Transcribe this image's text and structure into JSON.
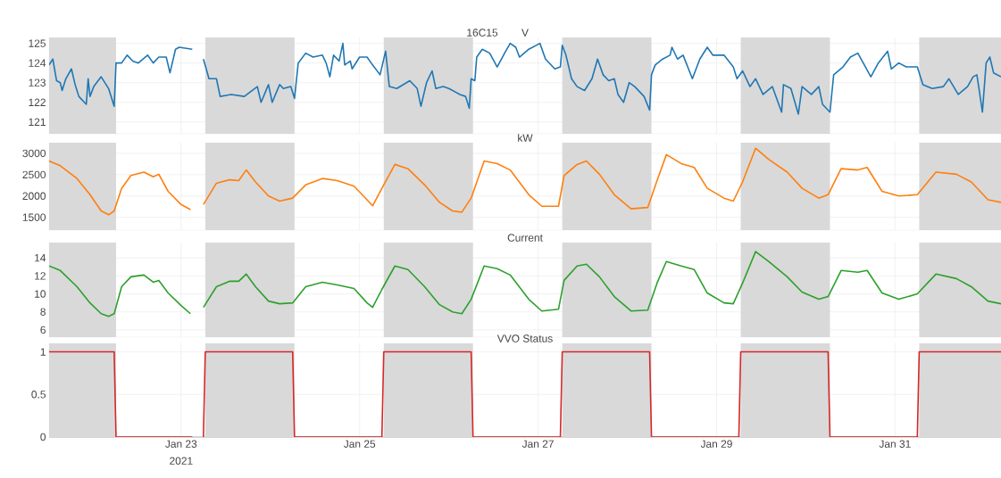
{
  "chart_data": [
    {
      "type": "line",
      "title": "V",
      "annotations": [
        "16C15"
      ],
      "xlim": [
        "2021-01-21T12:30",
        "2021-02-01T04:30"
      ],
      "ylim": [
        120.4,
        125.3
      ],
      "yticks": [
        121,
        122,
        123,
        124,
        125
      ],
      "xticks": [
        {
          "value": "2021-01-23",
          "label": null
        },
        {
          "value": "2021-01-25",
          "label": null
        },
        {
          "value": "2021-01-27",
          "label": null
        },
        {
          "value": "2021-01-29",
          "label": null
        },
        {
          "value": "2021-01-31",
          "label": null
        }
      ],
      "tick_labels": "y",
      "grid": true,
      "marker": "none",
      "line_style": "solid",
      "bands": [
        {
          "axis": "x",
          "from": "2021-01-21T12:30",
          "to": "2021-01-22T06:30",
          "color": "#d9d9d9"
        },
        {
          "axis": "x",
          "from": "2021-01-23T06:30",
          "to": "2021-01-24T06:30",
          "color": "#d9d9d9"
        },
        {
          "axis": "x",
          "from": "2021-01-25T06:30",
          "to": "2021-01-26T06:30",
          "color": "#d9d9d9"
        },
        {
          "axis": "x",
          "from": "2021-01-27T06:30",
          "to": "2021-01-28T06:30",
          "color": "#d9d9d9"
        },
        {
          "axis": "x",
          "from": "2021-01-29T06:30",
          "to": "2021-01-30T06:30",
          "color": "#d9d9d9"
        },
        {
          "axis": "x",
          "from": "2021-01-31T06:30",
          "to": "2021-02-01T04:30",
          "color": "#d9d9d9"
        }
      ],
      "series": [
        {
          "color": "#1f77b4",
          "x": [
            "2021-01-21T12:30",
            "2021-01-21T13:30",
            "2021-01-21T14:30",
            "2021-01-21T15:30",
            "2021-01-21T16:00",
            "2021-01-21T17:00",
            "2021-01-21T18:30",
            "2021-01-21T19:30",
            "2021-01-21T20:30",
            "2021-01-21T22:30",
            "2021-01-21T23:00",
            "2021-01-21T23:30",
            "2021-01-22T00:30",
            "2021-01-22T02:30",
            "2021-01-22T04:30",
            "2021-01-22T06:00",
            "2021-01-22T06:30",
            "2021-01-22T08:00",
            "2021-01-22T09:30",
            "2021-01-22T11:00",
            "2021-01-22T12:30",
            "2021-01-22T15:00",
            "2021-01-22T16:30",
            "2021-01-22T18:00",
            "2021-01-22T20:00",
            "2021-01-22T21:00",
            "2021-01-22T22:30",
            "2021-01-22T23:30",
            "2021-01-23T03:00",
            "2021-01-23T04:30",
            "2021-01-23T06:00",
            "2021-01-23T07:30",
            "2021-01-23T09:30",
            "2021-01-23T10:30",
            "2021-01-23T13:30",
            "2021-01-23T17:00",
            "2021-01-23T20:30",
            "2021-01-23T21:30",
            "2021-01-23T23:30",
            "2021-01-24T00:30",
            "2021-01-24T02:30",
            "2021-01-24T03:30",
            "2021-01-24T05:30",
            "2021-01-24T06:30",
            "2021-01-24T07:30",
            "2021-01-24T09:30",
            "2021-01-24T11:30",
            "2021-01-24T14:00",
            "2021-01-24T15:00",
            "2021-01-24T16:00",
            "2021-01-24T17:00",
            "2021-01-24T18:30",
            "2021-01-24T19:30",
            "2021-01-24T20:00",
            "2021-01-24T21:30",
            "2021-01-24T22:00",
            "2021-01-25T00:00",
            "2021-01-25T02:00",
            "2021-01-25T03:30",
            "2021-01-25T05:30",
            "2021-01-25T07:00",
            "2021-01-25T08:00",
            "2021-01-25T10:00",
            "2021-01-25T13:30",
            "2021-01-25T15:30",
            "2021-01-25T16:30",
            "2021-01-25T18:00",
            "2021-01-25T19:30",
            "2021-01-25T20:30",
            "2021-01-25T22:30",
            "2021-01-26T00:00",
            "2021-01-26T03:00",
            "2021-01-26T04:30",
            "2021-01-26T05:30",
            "2021-01-26T06:00",
            "2021-01-26T07:00",
            "2021-01-26T07:30",
            "2021-01-26T09:00",
            "2021-01-26T11:00",
            "2021-01-26T13:00",
            "2021-01-26T15:00",
            "2021-01-26T16:30",
            "2021-01-26T18:00",
            "2021-01-26T19:00",
            "2021-01-26T21:30",
            "2021-01-27T00:30",
            "2021-01-27T02:00",
            "2021-01-27T04:30",
            "2021-01-27T06:00",
            "2021-01-27T06:30",
            "2021-01-27T07:30",
            "2021-01-27T09:00",
            "2021-01-27T10:30",
            "2021-01-27T12:30",
            "2021-01-27T14:30",
            "2021-01-27T16:00",
            "2021-01-27T17:30",
            "2021-01-27T19:00",
            "2021-01-27T20:30",
            "2021-01-27T21:30",
            "2021-01-27T23:00",
            "2021-01-28T00:30",
            "2021-01-28T02:00",
            "2021-01-28T04:30",
            "2021-01-28T06:00",
            "2021-01-28T06:30",
            "2021-01-28T07:30",
            "2021-01-28T09:30",
            "2021-01-28T11:30",
            "2021-01-28T12:00",
            "2021-01-28T13:30",
            "2021-01-28T15:00",
            "2021-01-28T17:30",
            "2021-01-28T19:30",
            "2021-01-28T21:30",
            "2021-01-28T23:00",
            "2021-01-29T02:00",
            "2021-01-29T04:30",
            "2021-01-29T05:30",
            "2021-01-29T07:00",
            "2021-01-29T09:00",
            "2021-01-29T10:30",
            "2021-01-29T12:30",
            "2021-01-29T15:00",
            "2021-01-29T17:30",
            "2021-01-29T18:00",
            "2021-01-29T20:00",
            "2021-01-29T22:00",
            "2021-01-29T23:00",
            "2021-01-30T01:30",
            "2021-01-30T03:30",
            "2021-01-30T04:30",
            "2021-01-30T06:30",
            "2021-01-30T07:30",
            "2021-01-30T10:00",
            "2021-01-30T12:00",
            "2021-01-30T14:00",
            "2021-01-30T17:30",
            "2021-01-30T19:30",
            "2021-01-30T22:00",
            "2021-01-30T23:00",
            "2021-01-31T01:00",
            "2021-01-31T03:00",
            "2021-01-31T06:00",
            "2021-01-31T07:30",
            "2021-01-31T10:00",
            "2021-01-31T13:00",
            "2021-01-31T14:30",
            "2021-01-31T17:00",
            "2021-01-31T19:30",
            "2021-01-31T21:00",
            "2021-01-31T22:00",
            "2021-01-31T22:30",
            "2021-01-31T23:30",
            "2021-02-01T00:30",
            "2021-02-01T01:30",
            "2021-02-01T02:30",
            "2021-02-01T04:30"
          ],
          "values": [
            123.9,
            124.2,
            123.1,
            123.0,
            122.6,
            123.2,
            123.7,
            122.9,
            122.3,
            121.9,
            123.2,
            122.3,
            122.8,
            123.3,
            122.7,
            121.8,
            124.0,
            124.0,
            124.4,
            124.1,
            124.0,
            124.4,
            124.0,
            124.3,
            124.3,
            123.5,
            124.7,
            124.8,
            124.7,
            null,
            124.2,
            123.2,
            123.2,
            122.3,
            122.4,
            122.3,
            122.8,
            122.0,
            122.9,
            122.0,
            122.9,
            122.7,
            122.8,
            122.2,
            124.0,
            124.5,
            124.3,
            124.4,
            124.0,
            123.3,
            124.4,
            124.1,
            125.0,
            123.9,
            124.1,
            123.7,
            124.3,
            124.3,
            123.9,
            123.4,
            124.6,
            122.8,
            122.7,
            123.1,
            122.7,
            121.8,
            123.0,
            123.6,
            122.7,
            122.8,
            122.7,
            122.4,
            122.3,
            121.7,
            123.2,
            123.1,
            124.3,
            124.7,
            124.5,
            123.8,
            124.5,
            125.0,
            124.8,
            124.3,
            124.7,
            125.0,
            124.2,
            123.7,
            123.8,
            124.9,
            124.4,
            123.2,
            122.8,
            122.6,
            123.2,
            124.2,
            123.4,
            123.1,
            123.2,
            122.4,
            122.0,
            123.0,
            122.8,
            122.3,
            121.6,
            123.4,
            123.9,
            124.2,
            124.4,
            124.8,
            124.2,
            124.4,
            123.2,
            124.2,
            124.8,
            124.4,
            124.4,
            123.8,
            123.2,
            123.6,
            122.8,
            123.2,
            122.4,
            122.8,
            121.5,
            122.9,
            122.7,
            121.4,
            122.8,
            122.4,
            122.8,
            121.9,
            121.5,
            123.4,
            123.8,
            124.3,
            124.5,
            123.3,
            124.0,
            124.6,
            123.7,
            124.0,
            123.8,
            123.8,
            122.9,
            122.7,
            122.8,
            123.2,
            122.4,
            122.8,
            123.3,
            123.4,
            122.8,
            121.5,
            124.0,
            124.3,
            123.5,
            123.3
          ]
        }
      ]
    },
    {
      "type": "line",
      "title": "kW",
      "xlim": [
        "2021-01-21T12:30",
        "2021-02-01T04:30"
      ],
      "ylim": [
        1200,
        3250
      ],
      "yticks": [
        1500,
        2000,
        2500,
        3000
      ],
      "xticks": [
        {
          "value": "2021-01-23",
          "label": null
        },
        {
          "value": "2021-01-25",
          "label": null
        },
        {
          "value": "2021-01-27",
          "label": null
        },
        {
          "value": "2021-01-29",
          "label": null
        },
        {
          "value": "2021-01-31",
          "label": null
        }
      ],
      "tick_labels": "y",
      "grid": true,
      "marker": "none",
      "line_style": "solid",
      "bands": [
        {
          "axis": "x",
          "from": "2021-01-21T12:30",
          "to": "2021-01-22T06:30",
          "color": "#d9d9d9"
        },
        {
          "axis": "x",
          "from": "2021-01-23T06:30",
          "to": "2021-01-24T06:30",
          "color": "#d9d9d9"
        },
        {
          "axis": "x",
          "from": "2021-01-25T06:30",
          "to": "2021-01-26T06:30",
          "color": "#d9d9d9"
        },
        {
          "axis": "x",
          "from": "2021-01-27T06:30",
          "to": "2021-01-28T06:30",
          "color": "#d9d9d9"
        },
        {
          "axis": "x",
          "from": "2021-01-29T06:30",
          "to": "2021-01-30T06:30",
          "color": "#d9d9d9"
        },
        {
          "axis": "x",
          "from": "2021-01-31T06:30",
          "to": "2021-02-01T04:30",
          "color": "#d9d9d9"
        }
      ],
      "series": [
        {
          "color": "#ff7f0e",
          "x": [
            "2021-01-21T12:30",
            "2021-01-21T15:30",
            "2021-01-21T20:00",
            "2021-01-21T23:30",
            "2021-01-22T02:30",
            "2021-01-22T04:30",
            "2021-01-22T06:00",
            "2021-01-22T08:00",
            "2021-01-22T10:30",
            "2021-01-22T14:00",
            "2021-01-22T16:30",
            "2021-01-22T18:00",
            "2021-01-22T20:30",
            "2021-01-23T00:00",
            "2021-01-23T02:30",
            "2021-01-23T04:30",
            "2021-01-23T06:00",
            "2021-01-23T09:30",
            "2021-01-23T13:00",
            "2021-01-23T15:30",
            "2021-01-23T17:30",
            "2021-01-23T20:00",
            "2021-01-23T23:30",
            "2021-01-24T02:30",
            "2021-01-24T06:00",
            "2021-01-24T09:30",
            "2021-01-24T14:00",
            "2021-01-24T18:00",
            "2021-01-24T22:30",
            "2021-01-25T02:00",
            "2021-01-25T03:30",
            "2021-01-25T06:00",
            "2021-01-25T09:30",
            "2021-01-25T13:00",
            "2021-01-25T17:30",
            "2021-01-25T21:30",
            "2021-01-26T01:00",
            "2021-01-26T03:30",
            "2021-01-26T06:00",
            "2021-01-26T09:30",
            "2021-01-26T13:00",
            "2021-01-26T16:30",
            "2021-01-26T21:30",
            "2021-01-27T01:00",
            "2021-01-27T05:30",
            "2021-01-27T07:00",
            "2021-01-27T10:30",
            "2021-01-27T13:00",
            "2021-01-27T16:30",
            "2021-01-27T20:30",
            "2021-01-28T01:00",
            "2021-01-28T05:30",
            "2021-01-28T08:00",
            "2021-01-28T10:30",
            "2021-01-28T14:30",
            "2021-01-28T18:00",
            "2021-01-28T21:30",
            "2021-01-29T02:00",
            "2021-01-29T04:30",
            "2021-01-29T07:00",
            "2021-01-29T10:30",
            "2021-01-29T14:00",
            "2021-01-29T19:00",
            "2021-01-29T23:00",
            "2021-01-30T03:30",
            "2021-01-30T06:00",
            "2021-01-30T09:30",
            "2021-01-30T14:00",
            "2021-01-30T16:30",
            "2021-01-30T20:30",
            "2021-01-31T01:00",
            "2021-01-31T06:00",
            "2021-01-31T11:00",
            "2021-01-31T16:30",
            "2021-01-31T20:30",
            "2021-02-01T01:00",
            "2021-02-01T04:30"
          ],
          "values": [
            2820,
            2710,
            2410,
            2030,
            1650,
            1560,
            1650,
            2180,
            2480,
            2560,
            2450,
            2510,
            2110,
            1800,
            1680,
            null,
            1800,
            2300,
            2380,
            2360,
            2610,
            2330,
            2000,
            1880,
            1950,
            2260,
            2410,
            2360,
            2230,
            1910,
            1770,
            2180,
            2740,
            2640,
            2260,
            1850,
            1650,
            1620,
            1950,
            2820,
            2760,
            2610,
            2030,
            1760,
            1760,
            2480,
            2740,
            2820,
            2510,
            2030,
            1700,
            1730,
            2360,
            2970,
            2760,
            2670,
            2180,
            1950,
            1880,
            2330,
            3120,
            2860,
            2560,
            2180,
            1950,
            2030,
            2640,
            2610,
            2670,
            2110,
            2000,
            2030,
            2560,
            2510,
            2330,
            1910,
            1850
          ]
        }
      ]
    },
    {
      "type": "line",
      "title": "Current",
      "xlim": [
        "2021-01-21T12:30",
        "2021-02-01T04:30"
      ],
      "ylim": [
        5.2,
        15.7
      ],
      "yticks": [
        6,
        8,
        10,
        12,
        14
      ],
      "xticks": [
        {
          "value": "2021-01-23",
          "label": null
        },
        {
          "value": "2021-01-25",
          "label": null
        },
        {
          "value": "2021-01-27",
          "label": null
        },
        {
          "value": "2021-01-29",
          "label": null
        },
        {
          "value": "2021-01-31",
          "label": null
        }
      ],
      "tick_labels": "y",
      "grid": true,
      "marker": "none",
      "line_style": "solid",
      "bands": [
        {
          "axis": "x",
          "from": "2021-01-21T12:30",
          "to": "2021-01-22T06:30",
          "color": "#d9d9d9"
        },
        {
          "axis": "x",
          "from": "2021-01-23T06:30",
          "to": "2021-01-24T06:30",
          "color": "#d9d9d9"
        },
        {
          "axis": "x",
          "from": "2021-01-25T06:30",
          "to": "2021-01-26T06:30",
          "color": "#d9d9d9"
        },
        {
          "axis": "x",
          "from": "2021-01-27T06:30",
          "to": "2021-01-28T06:30",
          "color": "#d9d9d9"
        },
        {
          "axis": "x",
          "from": "2021-01-29T06:30",
          "to": "2021-01-30T06:30",
          "color": "#d9d9d9"
        },
        {
          "axis": "x",
          "from": "2021-01-31T06:30",
          "to": "2021-02-01T04:30",
          "color": "#d9d9d9"
        }
      ],
      "series": [
        {
          "color": "#2ca02c",
          "x": [
            "2021-01-21T12:30",
            "2021-01-21T15:30",
            "2021-01-21T20:00",
            "2021-01-21T23:30",
            "2021-01-22T02:30",
            "2021-01-22T04:30",
            "2021-01-22T06:00",
            "2021-01-22T08:00",
            "2021-01-22T10:30",
            "2021-01-22T14:00",
            "2021-01-22T16:30",
            "2021-01-22T18:00",
            "2021-01-22T20:30",
            "2021-01-23T00:00",
            "2021-01-23T02:30",
            "2021-01-23T04:30",
            "2021-01-23T06:00",
            "2021-01-23T09:30",
            "2021-01-23T13:00",
            "2021-01-23T15:30",
            "2021-01-23T17:30",
            "2021-01-23T20:00",
            "2021-01-23T23:30",
            "2021-01-24T02:30",
            "2021-01-24T06:00",
            "2021-01-24T09:30",
            "2021-01-24T14:00",
            "2021-01-24T18:00",
            "2021-01-24T22:30",
            "2021-01-25T02:00",
            "2021-01-25T03:30",
            "2021-01-25T06:00",
            "2021-01-25T09:30",
            "2021-01-25T13:00",
            "2021-01-25T17:30",
            "2021-01-25T21:30",
            "2021-01-26T01:00",
            "2021-01-26T03:30",
            "2021-01-26T06:00",
            "2021-01-26T09:30",
            "2021-01-26T13:00",
            "2021-01-26T16:30",
            "2021-01-26T21:30",
            "2021-01-27T01:00",
            "2021-01-27T05:30",
            "2021-01-27T07:00",
            "2021-01-27T10:30",
            "2021-01-27T13:00",
            "2021-01-27T16:30",
            "2021-01-27T20:30",
            "2021-01-28T01:00",
            "2021-01-28T05:30",
            "2021-01-28T08:00",
            "2021-01-28T10:30",
            "2021-01-28T14:30",
            "2021-01-28T18:00",
            "2021-01-28T21:30",
            "2021-01-29T02:00",
            "2021-01-29T04:30",
            "2021-01-29T07:00",
            "2021-01-29T10:30",
            "2021-01-29T14:00",
            "2021-01-29T19:00",
            "2021-01-29T23:00",
            "2021-01-30T03:30",
            "2021-01-30T06:00",
            "2021-01-30T09:30",
            "2021-01-30T14:00",
            "2021-01-30T16:30",
            "2021-01-30T20:30",
            "2021-01-31T01:00",
            "2021-01-31T06:00",
            "2021-01-31T11:00",
            "2021-01-31T16:30",
            "2021-01-31T20:30",
            "2021-02-01T01:00",
            "2021-02-01T04:30"
          ],
          "values": [
            13.1,
            12.6,
            10.8,
            9.0,
            7.8,
            7.5,
            7.8,
            10.8,
            11.9,
            12.1,
            11.3,
            11.5,
            10.1,
            8.7,
            7.8,
            null,
            8.5,
            10.8,
            11.4,
            11.4,
            12.2,
            10.8,
            9.2,
            8.9,
            9.0,
            10.8,
            11.3,
            11.0,
            10.6,
            9.0,
            8.5,
            10.5,
            13.1,
            12.7,
            10.8,
            8.8,
            8.0,
            7.8,
            9.4,
            13.1,
            12.8,
            12.1,
            9.4,
            8.1,
            8.3,
            11.5,
            13.1,
            13.3,
            11.9,
            9.7,
            8.1,
            8.2,
            11.2,
            13.6,
            13.1,
            12.7,
            10.1,
            9.0,
            8.9,
            11.2,
            14.7,
            13.6,
            11.9,
            10.2,
            9.4,
            9.7,
            12.6,
            12.4,
            12.6,
            10.1,
            9.4,
            10.0,
            12.2,
            11.7,
            10.8,
            9.2,
            8.9
          ]
        }
      ]
    },
    {
      "type": "line",
      "title": "VVO Status",
      "annotations": [
        "2021"
      ],
      "xlim": [
        "2021-01-21T12:30",
        "2021-02-01T04:30"
      ],
      "ylim": [
        0,
        1.1
      ],
      "yticks": [
        0,
        0.5,
        1
      ],
      "xticks": [
        {
          "value": "2021-01-23",
          "label": "Jan 23"
        },
        {
          "value": "2021-01-25",
          "label": "Jan 25"
        },
        {
          "value": "2021-01-27",
          "label": "Jan 27"
        },
        {
          "value": "2021-01-29",
          "label": "Jan 29"
        },
        {
          "value": "2021-01-31",
          "label": "Jan 31"
        }
      ],
      "grid": true,
      "marker": "none",
      "line_style": "solid",
      "bands": [
        {
          "axis": "x",
          "from": "2021-01-21T12:30",
          "to": "2021-01-22T06:30",
          "color": "#d9d9d9"
        },
        {
          "axis": "x",
          "from": "2021-01-23T06:30",
          "to": "2021-01-24T06:30",
          "color": "#d9d9d9"
        },
        {
          "axis": "x",
          "from": "2021-01-25T06:30",
          "to": "2021-01-26T06:30",
          "color": "#d9d9d9"
        },
        {
          "axis": "x",
          "from": "2021-01-27T06:30",
          "to": "2021-01-28T06:30",
          "color": "#d9d9d9"
        },
        {
          "axis": "x",
          "from": "2021-01-29T06:30",
          "to": "2021-01-30T06:30",
          "color": "#d9d9d9"
        },
        {
          "axis": "x",
          "from": "2021-01-31T06:30",
          "to": "2021-02-01T04:30",
          "color": "#d9d9d9"
        }
      ],
      "series": [
        {
          "color": "#d62728",
          "x": [
            "2021-01-21T12:30",
            "2021-01-22T06:00",
            "2021-01-22T06:30",
            "2021-01-23T03:00",
            "2021-01-23T04:30",
            "2021-01-23T06:00",
            "2021-01-23T06:30",
            "2021-01-24T06:00",
            "2021-01-24T06:30",
            "2021-01-25T06:00",
            "2021-01-25T06:30",
            "2021-01-26T06:00",
            "2021-01-26T06:30",
            "2021-01-27T06:00",
            "2021-01-27T06:30",
            "2021-01-28T06:00",
            "2021-01-28T06:30",
            "2021-01-29T06:00",
            "2021-01-29T06:30",
            "2021-01-30T06:00",
            "2021-01-30T06:30",
            "2021-01-31T06:00",
            "2021-01-31T06:30",
            "2021-02-01T04:30"
          ],
          "values": [
            1,
            1,
            0,
            0,
            null,
            0,
            1,
            1,
            0,
            0,
            1,
            1,
            0,
            0,
            1,
            1,
            0,
            0,
            1,
            1,
            0,
            0,
            1,
            1
          ]
        }
      ]
    }
  ]
}
